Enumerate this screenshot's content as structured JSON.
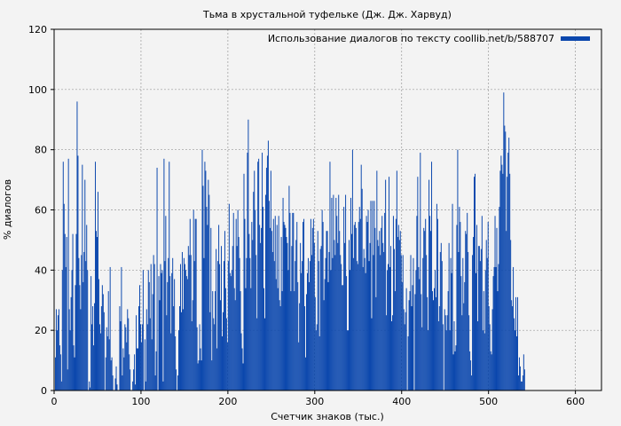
{
  "chart_data": {
    "type": "bar",
    "title": "Тьма в хрустальной туфельке (Дж. Дж. Харвуд)",
    "xlabel": "Счетчик знаков (тыс.)",
    "ylabel": "% диалогов",
    "legend": {
      "label": "Использование диалогов по тексту coollib.net/b/588707",
      "placement": "top-right"
    },
    "xlim": [
      0,
      630
    ],
    "ylim": [
      0,
      120
    ],
    "x_ticks": [
      "0",
      "100",
      "200",
      "300",
      "400",
      "500",
      "600"
    ],
    "y_ticks": [
      "0",
      "20",
      "40",
      "60",
      "80",
      "100",
      "120"
    ],
    "grid": true,
    "bar_color": "#0b47ad",
    "bar_step_x": 1,
    "values": [
      0,
      11,
      27,
      20,
      25,
      27,
      15,
      12,
      3,
      40,
      76,
      62,
      52,
      41,
      51,
      7,
      77,
      27,
      20,
      31,
      40,
      52,
      15,
      11,
      35,
      52,
      96,
      78,
      44,
      35,
      27,
      45,
      75,
      36,
      46,
      70,
      43,
      55,
      40,
      0,
      3,
      1,
      38,
      22,
      28,
      15,
      29,
      76,
      53,
      51,
      66,
      37,
      22,
      19,
      28,
      35,
      32,
      26,
      0,
      11,
      21,
      18,
      33,
      17,
      41,
      10,
      11,
      5,
      0,
      0,
      4,
      8,
      2,
      0,
      0,
      28,
      23,
      41,
      5,
      14,
      11,
      22,
      21,
      16,
      27,
      24,
      12,
      7,
      0,
      0,
      3,
      7,
      12,
      2,
      25,
      14,
      14,
      28,
      35,
      22,
      16,
      22,
      40,
      0,
      17,
      3,
      27,
      22,
      40,
      36,
      24,
      42,
      17,
      32,
      45,
      42,
      5,
      13,
      74,
      0,
      38,
      30,
      42,
      39,
      40,
      3,
      77,
      43,
      58,
      25,
      36,
      44,
      76,
      38,
      19,
      39,
      44,
      28,
      37,
      18,
      7,
      0,
      5,
      20,
      28,
      42,
      26,
      46,
      27,
      44,
      42,
      40,
      38,
      37,
      48,
      45,
      57,
      45,
      23,
      30,
      60,
      43,
      57,
      57,
      21,
      9,
      10,
      22,
      14,
      10,
      80,
      68,
      44,
      76,
      73,
      61,
      55,
      70,
      65,
      26,
      54,
      10,
      33,
      24,
      22,
      33,
      47,
      14,
      43,
      55,
      42,
      30,
      48,
      18,
      26,
      43,
      53,
      34,
      24,
      16,
      43,
      62,
      39,
      38,
      40,
      48,
      59,
      34,
      30,
      57,
      48,
      60,
      51,
      44,
      33,
      19,
      14,
      9,
      72,
      57,
      34,
      44,
      79,
      90,
      52,
      44,
      34,
      56,
      50,
      66,
      73,
      60,
      45,
      24,
      76,
      77,
      55,
      49,
      54,
      79,
      61,
      34,
      24,
      65,
      74,
      78,
      83,
      63,
      54,
      73,
      53,
      46,
      57,
      43,
      58,
      37,
      55,
      34,
      58,
      30,
      28,
      51,
      33,
      64,
      56,
      55,
      54,
      51,
      49,
      40,
      68,
      59,
      33,
      48,
      59,
      59,
      33,
      43,
      50,
      56,
      36,
      16,
      29,
      49,
      39,
      43,
      56,
      57,
      28,
      11,
      32,
      39,
      44,
      36,
      43,
      57,
      45,
      54,
      57,
      49,
      31,
      20,
      22,
      53,
      43,
      18,
      47,
      48,
      60,
      56,
      30,
      37,
      44,
      53,
      53,
      36,
      46,
      76,
      40,
      64,
      44,
      65,
      50,
      45,
      64,
      58,
      49,
      65,
      53,
      45,
      42,
      35,
      35,
      61,
      49,
      65,
      38,
      20,
      20,
      50,
      40,
      64,
      52,
      80,
      44,
      55,
      56,
      54,
      43,
      42,
      56,
      61,
      57,
      75,
      67,
      41,
      47,
      44,
      39,
      58,
      56,
      60,
      43,
      49,
      63,
      24,
      63,
      45,
      63,
      54,
      31,
      73,
      50,
      48,
      53,
      45,
      54,
      58,
      49,
      46,
      59,
      70,
      25,
      40,
      42,
      71,
      41,
      48,
      23,
      25,
      58,
      47,
      33,
      57,
      73,
      51,
      55,
      50,
      53,
      45,
      36,
      45,
      27,
      22,
      26,
      34,
      0,
      18,
      30,
      33,
      45,
      28,
      35,
      44,
      0,
      32,
      40,
      58,
      71,
      41,
      37,
      79,
      32,
      21,
      44,
      54,
      53,
      57,
      45,
      31,
      20,
      70,
      58,
      53,
      76,
      33,
      30,
      34,
      40,
      31,
      62,
      57,
      23,
      28,
      46,
      49,
      43,
      22,
      0,
      27,
      25,
      20,
      25,
      33,
      49,
      20,
      44,
      39,
      62,
      12,
      23,
      13,
      15,
      55,
      80,
      46,
      61,
      56,
      38,
      25,
      44,
      29,
      36,
      53,
      52,
      59,
      46,
      25,
      13,
      10,
      5,
      45,
      51,
      71,
      72,
      39,
      55,
      23,
      48,
      48,
      43,
      47,
      58,
      20,
      33,
      19,
      40,
      50,
      44,
      56,
      28,
      22,
      13,
      12,
      27,
      38,
      41,
      58,
      41,
      54,
      33,
      42,
      61,
      73,
      78,
      75,
      72,
      99,
      88,
      86,
      53,
      71,
      79,
      84,
      72,
      50,
      30,
      28,
      41,
      24,
      20,
      31,
      18,
      31,
      5,
      11,
      8,
      3,
      3,
      5,
      12,
      7,
      0
    ]
  }
}
